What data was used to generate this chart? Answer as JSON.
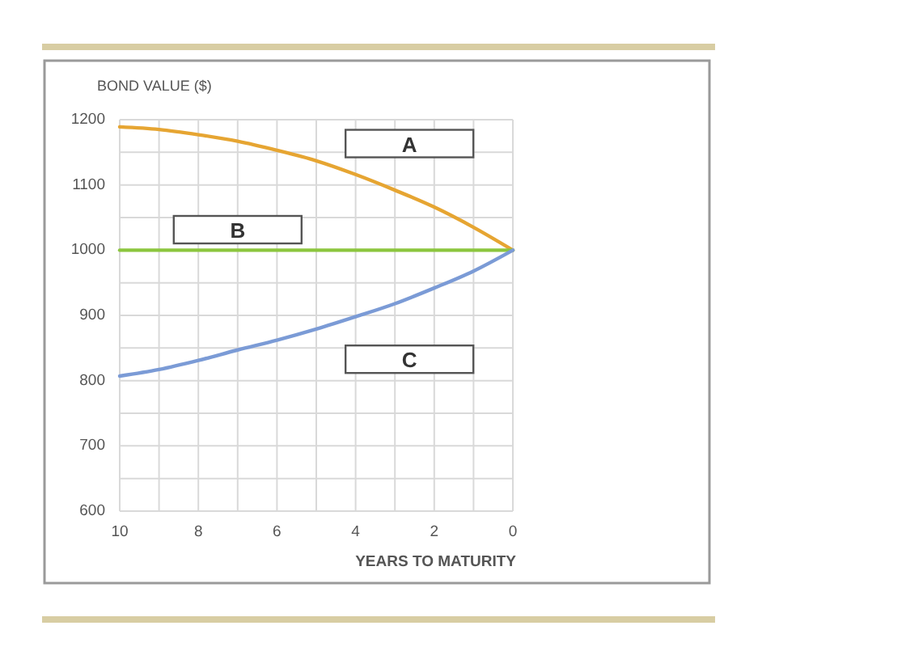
{
  "chart_data": {
    "type": "line",
    "xlabel": "YEARS TO MATURITY",
    "ylabel": "BOND VALUE ($)",
    "x": [
      10,
      9,
      8,
      7,
      6,
      5,
      4,
      3,
      2,
      1,
      0
    ],
    "series": [
      {
        "name": "A",
        "color": "#e6a532",
        "values": [
          1189,
          1185,
          1177,
          1167,
          1153,
          1137,
          1116,
          1092,
          1066,
          1035,
          1000
        ]
      },
      {
        "name": "B",
        "color": "#8cc63e",
        "values": [
          1000,
          1000,
          1000,
          1000,
          1000,
          1000,
          1000,
          1000,
          1000,
          1000,
          1000
        ]
      },
      {
        "name": "C",
        "color": "#7b9bd6",
        "values": [
          807,
          817,
          831,
          847,
          862,
          879,
          898,
          918,
          942,
          968,
          1000
        ]
      }
    ],
    "xlim": [
      10,
      0
    ],
    "ylim": [
      600,
      1200
    ],
    "xticks": [
      10,
      {
        "value": 9,
        "label": null
      },
      8,
      {
        "value": 7,
        "label": null
      },
      6,
      {
        "value": 5,
        "label": null
      },
      4,
      {
        "value": 3,
        "label": null
      },
      2,
      {
        "value": 1,
        "label": null
      },
      0
    ],
    "yticks": [
      600,
      {
        "value": 650,
        "label": null
      },
      700,
      {
        "value": 750,
        "label": null
      },
      800,
      {
        "value": 850,
        "label": null
      },
      900,
      {
        "value": 950,
        "label": null
      },
      1000,
      {
        "value": 1050,
        "label": null
      },
      1100,
      {
        "value": 1150,
        "label": null
      },
      1200
    ],
    "grid": true
  }
}
